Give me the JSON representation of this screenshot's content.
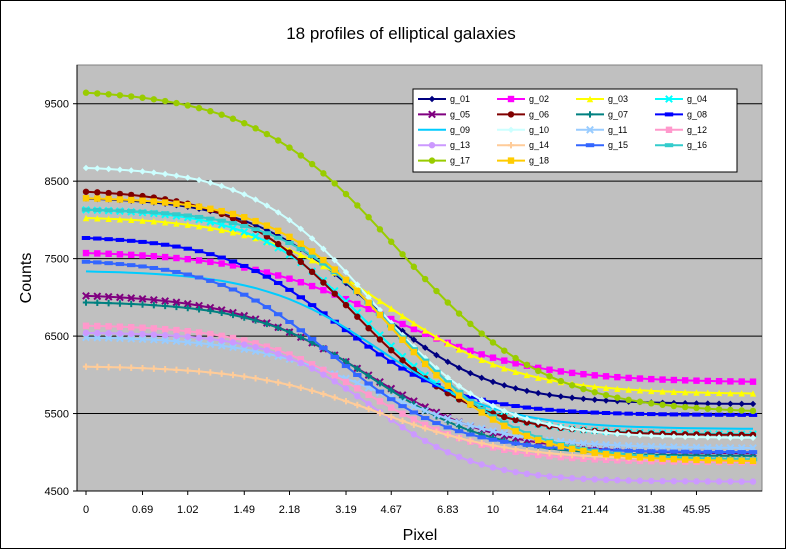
{
  "chart_data": {
    "type": "line",
    "title": "18 profiles of elliptical galaxies",
    "xlabel": "Pixel",
    "ylabel": "Counts",
    "ylim": [
      4500,
      10000
    ],
    "yticks": [
      4500,
      5500,
      6500,
      7500,
      8500,
      9500
    ],
    "x_count": 60,
    "xtick_labels": [
      "0",
      "0.69",
      "1.02",
      "1.49",
      "2.18",
      "3.19",
      "4.67",
      "6.83",
      "10",
      "14.64",
      "21.44",
      "31.38",
      "45.95"
    ],
    "grid": "horizontal",
    "plot_background": "#c0c0c0",
    "legend_position": "top-right",
    "series": [
      {
        "name": "g_01",
        "color": "#000080",
        "marker": "diamond",
        "start": 8300,
        "end": 5620,
        "mid": 0.42,
        "w": 0.09
      },
      {
        "name": "g_02",
        "color": "#ff00ff",
        "marker": "square",
        "start": 7600,
        "end": 5900,
        "mid": 0.45,
        "w": 0.11
      },
      {
        "name": "g_03",
        "color": "#ffff00",
        "marker": "triangle",
        "start": 8050,
        "end": 5750,
        "mid": 0.45,
        "w": 0.1
      },
      {
        "name": "g_04",
        "color": "#00ffff",
        "marker": "x",
        "start": 8150,
        "end": 5230,
        "mid": 0.42,
        "w": 0.085
      },
      {
        "name": "g_05",
        "color": "#800080",
        "marker": "x",
        "start": 7050,
        "end": 4980,
        "mid": 0.42,
        "w": 0.1
      },
      {
        "name": "g_06",
        "color": "#800000",
        "marker": "circle",
        "start": 8400,
        "end": 5220,
        "mid": 0.4,
        "w": 0.09
      },
      {
        "name": "g_07",
        "color": "#008080",
        "marker": "plus",
        "start": 6950,
        "end": 4950,
        "mid": 0.43,
        "w": 0.09
      },
      {
        "name": "g_08",
        "color": "#0000ff",
        "marker": "dash",
        "start": 7800,
        "end": 5480,
        "mid": 0.38,
        "w": 0.09
      },
      {
        "name": "g_09",
        "color": "#00ccff",
        "marker": "none",
        "start": 7350,
        "end": 5300,
        "mid": 0.44,
        "w": 0.09
      },
      {
        "name": "g_10",
        "color": "#ccffff",
        "marker": "diamond",
        "start": 8700,
        "end": 5180,
        "mid": 0.43,
        "w": 0.09
      },
      {
        "name": "g_11",
        "color": "#99ccff",
        "marker": "x",
        "start": 6500,
        "end": 5050,
        "mid": 0.44,
        "w": 0.1
      },
      {
        "name": "g_12",
        "color": "#ff99cc",
        "marker": "square",
        "start": 6650,
        "end": 4870,
        "mid": 0.42,
        "w": 0.09
      },
      {
        "name": "g_13",
        "color": "#cc99ff",
        "marker": "circle",
        "start": 6550,
        "end": 4620,
        "mid": 0.43,
        "w": 0.08
      },
      {
        "name": "g_14",
        "color": "#ffcc99",
        "marker": "plus",
        "start": 6120,
        "end": 4900,
        "mid": 0.44,
        "w": 0.1
      },
      {
        "name": "g_15",
        "color": "#3366ff",
        "marker": "dash",
        "start": 7500,
        "end": 5000,
        "mid": 0.37,
        "w": 0.09
      },
      {
        "name": "g_16",
        "color": "#33cccc",
        "marker": "dash",
        "start": 8150,
        "end": 4900,
        "mid": 0.47,
        "w": 0.09
      },
      {
        "name": "g_17",
        "color": "#99cc00",
        "marker": "circle",
        "start": 9700,
        "end": 5500,
        "mid": 0.47,
        "w": 0.11
      },
      {
        "name": "g_18",
        "color": "#ffcc00",
        "marker": "square",
        "start": 8300,
        "end": 4880,
        "mid": 0.46,
        "w": 0.09
      }
    ]
  }
}
